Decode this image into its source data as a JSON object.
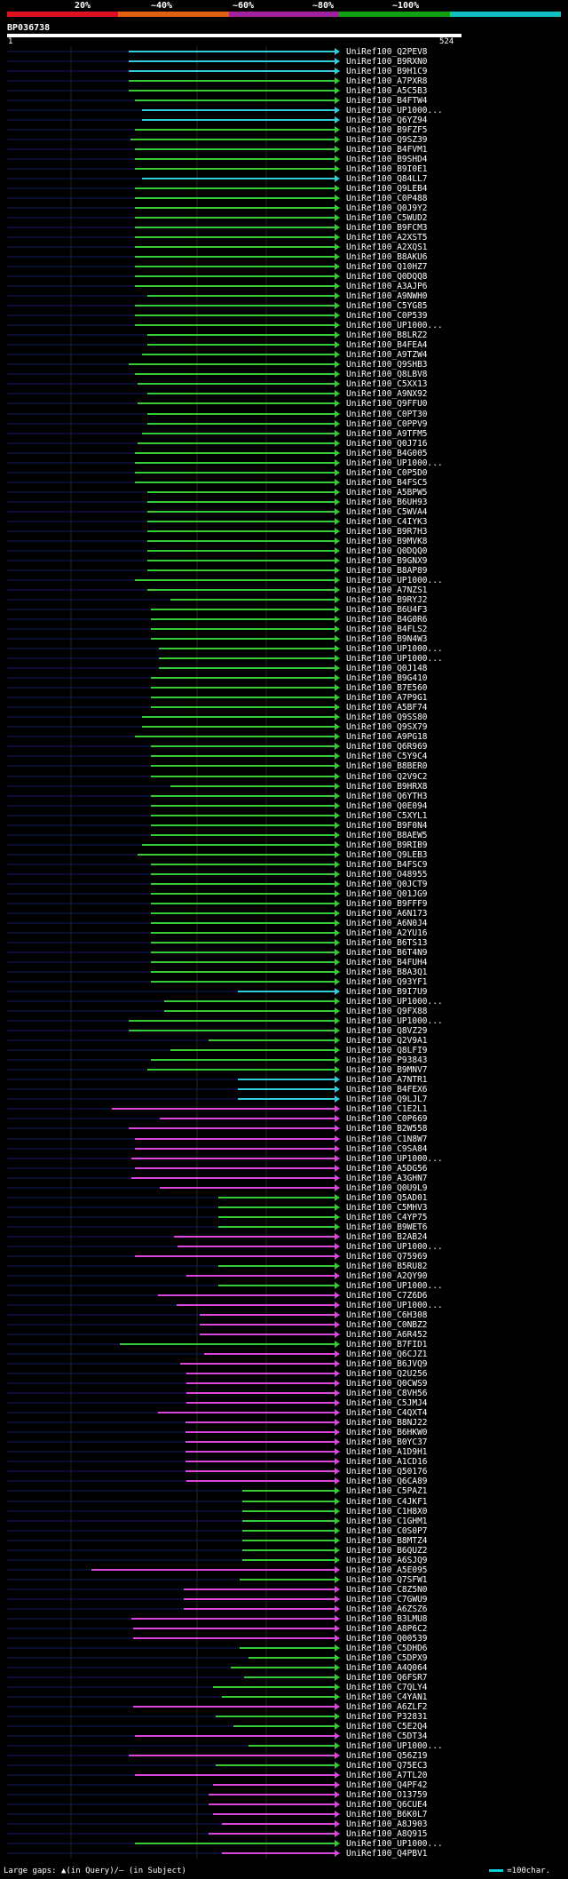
{
  "header": {
    "identity_labels": [
      "20%",
      "~40%",
      "~60%",
      "~80%",
      "~100%"
    ],
    "identity_colors": [
      "#e01020",
      "#e06010",
      "#a020a0",
      "#10a010",
      "#10c0c0"
    ],
    "query_id": "BP036738",
    "query_start": "1",
    "query_end": "524"
  },
  "colors": {
    "cyan": "#33ccdd",
    "green": "#33cc33",
    "magenta": "#dd44dd",
    "background": "#000000"
  },
  "hits": [
    {
      "name": "UniRef100_Q2PEV8",
      "color": "cyan"
    },
    {
      "name": "UniRef100_B9RXN0",
      "color": "cyan"
    },
    {
      "name": "UniRef100_B9H1C9",
      "color": "cyan"
    },
    {
      "name": "UniRef100_A7PXR8",
      "color": "green"
    },
    {
      "name": "UniRef100_A5C5B3",
      "color": "green"
    },
    {
      "name": "UniRef100_B4FTW4",
      "color": "green"
    },
    {
      "name": "UniRef100_UP1000...",
      "color": "cyan"
    },
    {
      "name": "UniRef100_Q6YZ94",
      "color": "cyan"
    },
    {
      "name": "UniRef100_B9FZF5",
      "color": "green"
    },
    {
      "name": "UniRef100_Q9SZ39",
      "color": "green"
    },
    {
      "name": "UniRef100_B4FVM1",
      "color": "green"
    },
    {
      "name": "UniRef100_B9SHD4",
      "color": "green"
    },
    {
      "name": "UniRef100_B9I0E1",
      "color": "green"
    },
    {
      "name": "UniRef100_Q84LL7",
      "color": "cyan"
    },
    {
      "name": "UniRef100_Q9LEB4",
      "color": "green"
    },
    {
      "name": "UniRef100_C0P488",
      "color": "green"
    },
    {
      "name": "UniRef100_Q0J9Y2",
      "color": "green"
    },
    {
      "name": "UniRef100_C5WUD2",
      "color": "green"
    },
    {
      "name": "UniRef100_B9FCM3",
      "color": "green"
    },
    {
      "name": "UniRef100_A2XST5",
      "color": "green"
    },
    {
      "name": "UniRef100_A2XQS1",
      "color": "green"
    },
    {
      "name": "UniRef100_B8AKU6",
      "color": "green"
    },
    {
      "name": "UniRef100_Q10HZ7",
      "color": "green"
    },
    {
      "name": "UniRef100_Q0DQQ8",
      "color": "green"
    },
    {
      "name": "UniRef100_A3AJP6",
      "color": "green"
    },
    {
      "name": "UniRef100_A9NWH0",
      "color": "green"
    },
    {
      "name": "UniRef100_C5YG85",
      "color": "green"
    },
    {
      "name": "UniRef100_C0P539",
      "color": "green"
    },
    {
      "name": "UniRef100_UP1000...",
      "color": "green"
    },
    {
      "name": "UniRef100_B8LRZ2",
      "color": "green"
    },
    {
      "name": "UniRef100_B4FEA4",
      "color": "green"
    },
    {
      "name": "UniRef100_A9TZW4",
      "color": "green"
    },
    {
      "name": "UniRef100_Q9SHB3",
      "color": "green"
    },
    {
      "name": "UniRef100_Q8LBV8",
      "color": "green"
    },
    {
      "name": "UniRef100_C5XX13",
      "color": "green"
    },
    {
      "name": "UniRef100_A9NX92",
      "color": "green"
    },
    {
      "name": "UniRef100_Q9FFU0",
      "color": "green"
    },
    {
      "name": "UniRef100_C0PT30",
      "color": "green"
    },
    {
      "name": "UniRef100_C0PPV9",
      "color": "green"
    },
    {
      "name": "UniRef100_A9TFM5",
      "color": "green"
    },
    {
      "name": "UniRef100_Q0J716",
      "color": "green"
    },
    {
      "name": "UniRef100_B4G005",
      "color": "green"
    },
    {
      "name": "UniRef100_UP1000...",
      "color": "green"
    },
    {
      "name": "UniRef100_C0P5D0",
      "color": "green"
    },
    {
      "name": "UniRef100_B4FSC5",
      "color": "green"
    },
    {
      "name": "UniRef100_A5BPW5",
      "color": "green"
    },
    {
      "name": "UniRef100_B6UH93",
      "color": "green"
    },
    {
      "name": "UniRef100_C5WVA4",
      "color": "green"
    },
    {
      "name": "UniRef100_C4IYK3",
      "color": "green"
    },
    {
      "name": "UniRef100_B9R7H3",
      "color": "green"
    },
    {
      "name": "UniRef100_B9MVK8",
      "color": "green"
    },
    {
      "name": "UniRef100_Q0DQQ0",
      "color": "green"
    },
    {
      "name": "UniRef100_B9GNX9",
      "color": "green"
    },
    {
      "name": "UniRef100_B8AP89",
      "color": "green"
    },
    {
      "name": "UniRef100_UP1000...",
      "color": "green"
    },
    {
      "name": "UniRef100_A7NZS1",
      "color": "green"
    },
    {
      "name": "UniRef100_B9RYJ2",
      "color": "green"
    },
    {
      "name": "UniRef100_B6U4F3",
      "color": "green"
    },
    {
      "name": "UniRef100_B4G0R6",
      "color": "green"
    },
    {
      "name": "UniRef100_B4FLS2",
      "color": "green"
    },
    {
      "name": "UniRef100_B9N4W3",
      "color": "green"
    },
    {
      "name": "UniRef100_UP1000...",
      "color": "green"
    },
    {
      "name": "UniRef100_UP1000...",
      "color": "green"
    },
    {
      "name": "UniRef100_Q0J148",
      "color": "green"
    },
    {
      "name": "UniRef100_B9G410",
      "color": "green"
    },
    {
      "name": "UniRef100_B7E560",
      "color": "green"
    },
    {
      "name": "UniRef100_A7P9G1",
      "color": "green"
    },
    {
      "name": "UniRef100_A5BF74",
      "color": "green"
    },
    {
      "name": "UniRef100_Q9SS80",
      "color": "green"
    },
    {
      "name": "UniRef100_Q9SX79",
      "color": "green"
    },
    {
      "name": "UniRef100_A9PG18",
      "color": "green"
    },
    {
      "name": "UniRef100_Q6R969",
      "color": "green"
    },
    {
      "name": "UniRef100_C5Y9C4",
      "color": "green"
    },
    {
      "name": "UniRef100_B8BER0",
      "color": "green"
    },
    {
      "name": "UniRef100_Q2V9C2",
      "color": "green"
    },
    {
      "name": "UniRef100_B9HRX8",
      "color": "green"
    },
    {
      "name": "UniRef100_Q6YTH3",
      "color": "green"
    },
    {
      "name": "UniRef100_Q0E094",
      "color": "green"
    },
    {
      "name": "UniRef100_C5XYL1",
      "color": "green"
    },
    {
      "name": "UniRef100_B9F0N4",
      "color": "green"
    },
    {
      "name": "UniRef100_B8AEW5",
      "color": "green"
    },
    {
      "name": "UniRef100_B9RIB9",
      "color": "green"
    },
    {
      "name": "UniRef100_Q9LEB3",
      "color": "green"
    },
    {
      "name": "UniRef100_B4FSC9",
      "color": "green"
    },
    {
      "name": "UniRef100_O48955",
      "color": "green"
    },
    {
      "name": "UniRef100_Q0JCT9",
      "color": "green"
    },
    {
      "name": "UniRef100_Q01JG9",
      "color": "green"
    },
    {
      "name": "UniRef100_B9FFF9",
      "color": "green"
    },
    {
      "name": "UniRef100_A6N173",
      "color": "green"
    },
    {
      "name": "UniRef100_A6N0J4",
      "color": "green"
    },
    {
      "name": "UniRef100_A2YU16",
      "color": "green"
    },
    {
      "name": "UniRef100_B6TS13",
      "color": "green"
    },
    {
      "name": "UniRef100_B6T4N9",
      "color": "green"
    },
    {
      "name": "UniRef100_B4FUH4",
      "color": "green"
    },
    {
      "name": "UniRef100_B8A3Q1",
      "color": "green"
    },
    {
      "name": "UniRef100_Q93YF1",
      "color": "green"
    },
    {
      "name": "UniRef100_B9I7U9",
      "color": "cyan"
    },
    {
      "name": "UniRef100_UP1000...",
      "color": "green"
    },
    {
      "name": "UniRef100_Q9FX88",
      "color": "green"
    },
    {
      "name": "UniRef100_UP1000...",
      "color": "green"
    },
    {
      "name": "UniRef100_Q8VZ29",
      "color": "green"
    },
    {
      "name": "UniRef100_Q2V9A1",
      "color": "green"
    },
    {
      "name": "UniRef100_Q8LFI9",
      "color": "green"
    },
    {
      "name": "UniRef100_P93843",
      "color": "green"
    },
    {
      "name": "UniRef100_B9MNV7",
      "color": "green"
    },
    {
      "name": "UniRef100_A7NTR1",
      "color": "cyan"
    },
    {
      "name": "UniRef100_B4FEX6",
      "color": "cyan"
    },
    {
      "name": "UniRef100_Q9LJL7",
      "color": "cyan"
    },
    {
      "name": "UniRef100_C1E2L1",
      "color": "magenta"
    },
    {
      "name": "UniRef100_C0P669",
      "color": "magenta"
    },
    {
      "name": "UniRef100_B2W558",
      "color": "magenta"
    },
    {
      "name": "UniRef100_C1N8W7",
      "color": "magenta"
    },
    {
      "name": "UniRef100_C9SA84",
      "color": "magenta"
    },
    {
      "name": "UniRef100_UP1000...",
      "color": "magenta"
    },
    {
      "name": "UniRef100_A5DG56",
      "color": "magenta"
    },
    {
      "name": "UniRef100_A3GHN7",
      "color": "magenta"
    },
    {
      "name": "UniRef100_Q0U9L9",
      "color": "magenta"
    },
    {
      "name": "UniRef100_Q5AD01",
      "color": "green"
    },
    {
      "name": "UniRef100_C5MHV3",
      "color": "green"
    },
    {
      "name": "UniRef100_C4YP75",
      "color": "green"
    },
    {
      "name": "UniRef100_B9WET6",
      "color": "green"
    },
    {
      "name": "UniRef100_B2AB24",
      "color": "magenta"
    },
    {
      "name": "UniRef100_UP1000...",
      "color": "magenta"
    },
    {
      "name": "UniRef100_Q75969",
      "color": "magenta"
    },
    {
      "name": "UniRef100_B5RU82",
      "color": "green"
    },
    {
      "name": "UniRef100_A2QY90",
      "color": "magenta"
    },
    {
      "name": "UniRef100_UP1000...",
      "color": "green"
    },
    {
      "name": "UniRef100_C7Z6D6",
      "color": "magenta"
    },
    {
      "name": "UniRef100_UP1000...",
      "color": "magenta"
    },
    {
      "name": "UniRef100_C6H308",
      "color": "magenta"
    },
    {
      "name": "UniRef100_C0NBZ2",
      "color": "magenta"
    },
    {
      "name": "UniRef100_A6R452",
      "color": "magenta"
    },
    {
      "name": "UniRef100_B7FID1",
      "color": "green"
    },
    {
      "name": "UniRef100_Q6CJZ1",
      "color": "magenta"
    },
    {
      "name": "UniRef100_B6JVQ9",
      "color": "magenta"
    },
    {
      "name": "UniRef100_Q2U256",
      "color": "magenta"
    },
    {
      "name": "UniRef100_Q0CWS9",
      "color": "magenta"
    },
    {
      "name": "UniRef100_C8VH56",
      "color": "magenta"
    },
    {
      "name": "UniRef100_C5JMJ4",
      "color": "magenta"
    },
    {
      "name": "UniRef100_C4QXT4",
      "color": "magenta"
    },
    {
      "name": "UniRef100_B8NJ22",
      "color": "magenta"
    },
    {
      "name": "UniRef100_B6HKW0",
      "color": "magenta"
    },
    {
      "name": "UniRef100_B0YC37",
      "color": "magenta"
    },
    {
      "name": "UniRef100_A1D9H1",
      "color": "magenta"
    },
    {
      "name": "UniRef100_A1CD16",
      "color": "magenta"
    },
    {
      "name": "UniRef100_Q50176",
      "color": "magenta"
    },
    {
      "name": "UniRef100_Q6CA89",
      "color": "magenta"
    },
    {
      "name": "UniRef100_C5PAZ1",
      "color": "green"
    },
    {
      "name": "UniRef100_C4JKF1",
      "color": "green"
    },
    {
      "name": "UniRef100_C1H8X0",
      "color": "green"
    },
    {
      "name": "UniRef100_C1GHM1",
      "color": "green"
    },
    {
      "name": "UniRef100_C0S0P7",
      "color": "green"
    },
    {
      "name": "UniRef100_B8MTZ4",
      "color": "green"
    },
    {
      "name": "UniRef100_B6QUZ2",
      "color": "green"
    },
    {
      "name": "UniRef100_A6SJQ9",
      "color": "green"
    },
    {
      "name": "UniRef100_A5E095",
      "color": "magenta"
    },
    {
      "name": "UniRef100_Q7SFW1",
      "color": "green"
    },
    {
      "name": "UniRef100_C8Z5N0",
      "color": "magenta"
    },
    {
      "name": "UniRef100_C7GWU9",
      "color": "magenta"
    },
    {
      "name": "UniRef100_A6ZSZ6",
      "color": "magenta"
    },
    {
      "name": "UniRef100_B3LMU8",
      "color": "magenta"
    },
    {
      "name": "UniRef100_A8P6C2",
      "color": "magenta"
    },
    {
      "name": "UniRef100_Q00539",
      "color": "magenta"
    },
    {
      "name": "UniRef100_C5DHD6",
      "color": "green"
    },
    {
      "name": "UniRef100_C5DPX9",
      "color": "green"
    },
    {
      "name": "UniRef100_A4Q064",
      "color": "green"
    },
    {
      "name": "UniRef100_Q6FSR7",
      "color": "green"
    },
    {
      "name": "UniRef100_C7QLY4",
      "color": "green"
    },
    {
      "name": "UniRef100_C4YAN1",
      "color": "green"
    },
    {
      "name": "UniRef100_A6ZLF2",
      "color": "magenta"
    },
    {
      "name": "UniRef100_P32831",
      "color": "green"
    },
    {
      "name": "UniRef100_C5E2Q4",
      "color": "green"
    },
    {
      "name": "UniRef100_C5DT34",
      "color": "magenta"
    },
    {
      "name": "UniRef100_UP1000...",
      "color": "green"
    },
    {
      "name": "UniRef100_Q56Z19",
      "color": "magenta"
    },
    {
      "name": "UniRef100_Q75EC3",
      "color": "green"
    },
    {
      "name": "UniRef100_A7TL20",
      "color": "magenta"
    },
    {
      "name": "UniRef100_Q4PF42",
      "color": "magenta"
    },
    {
      "name": "UniRef100_O13759",
      "color": "magenta"
    },
    {
      "name": "UniRef100_Q6CUE4",
      "color": "magenta"
    },
    {
      "name": "UniRef100_B6K0L7",
      "color": "magenta"
    },
    {
      "name": "UniRef100_A8J903",
      "color": "magenta"
    },
    {
      "name": "UniRef100_A8Q915",
      "color": "magenta"
    },
    {
      "name": "UniRef100_UP1000...",
      "color": "green"
    },
    {
      "name": "UniRef100_Q4PBV1",
      "color": "magenta"
    }
  ],
  "footer": {
    "gaps_label": "Large gaps: ▲(in Query)/— (in Subject)",
    "scale_label": "=100char."
  }
}
